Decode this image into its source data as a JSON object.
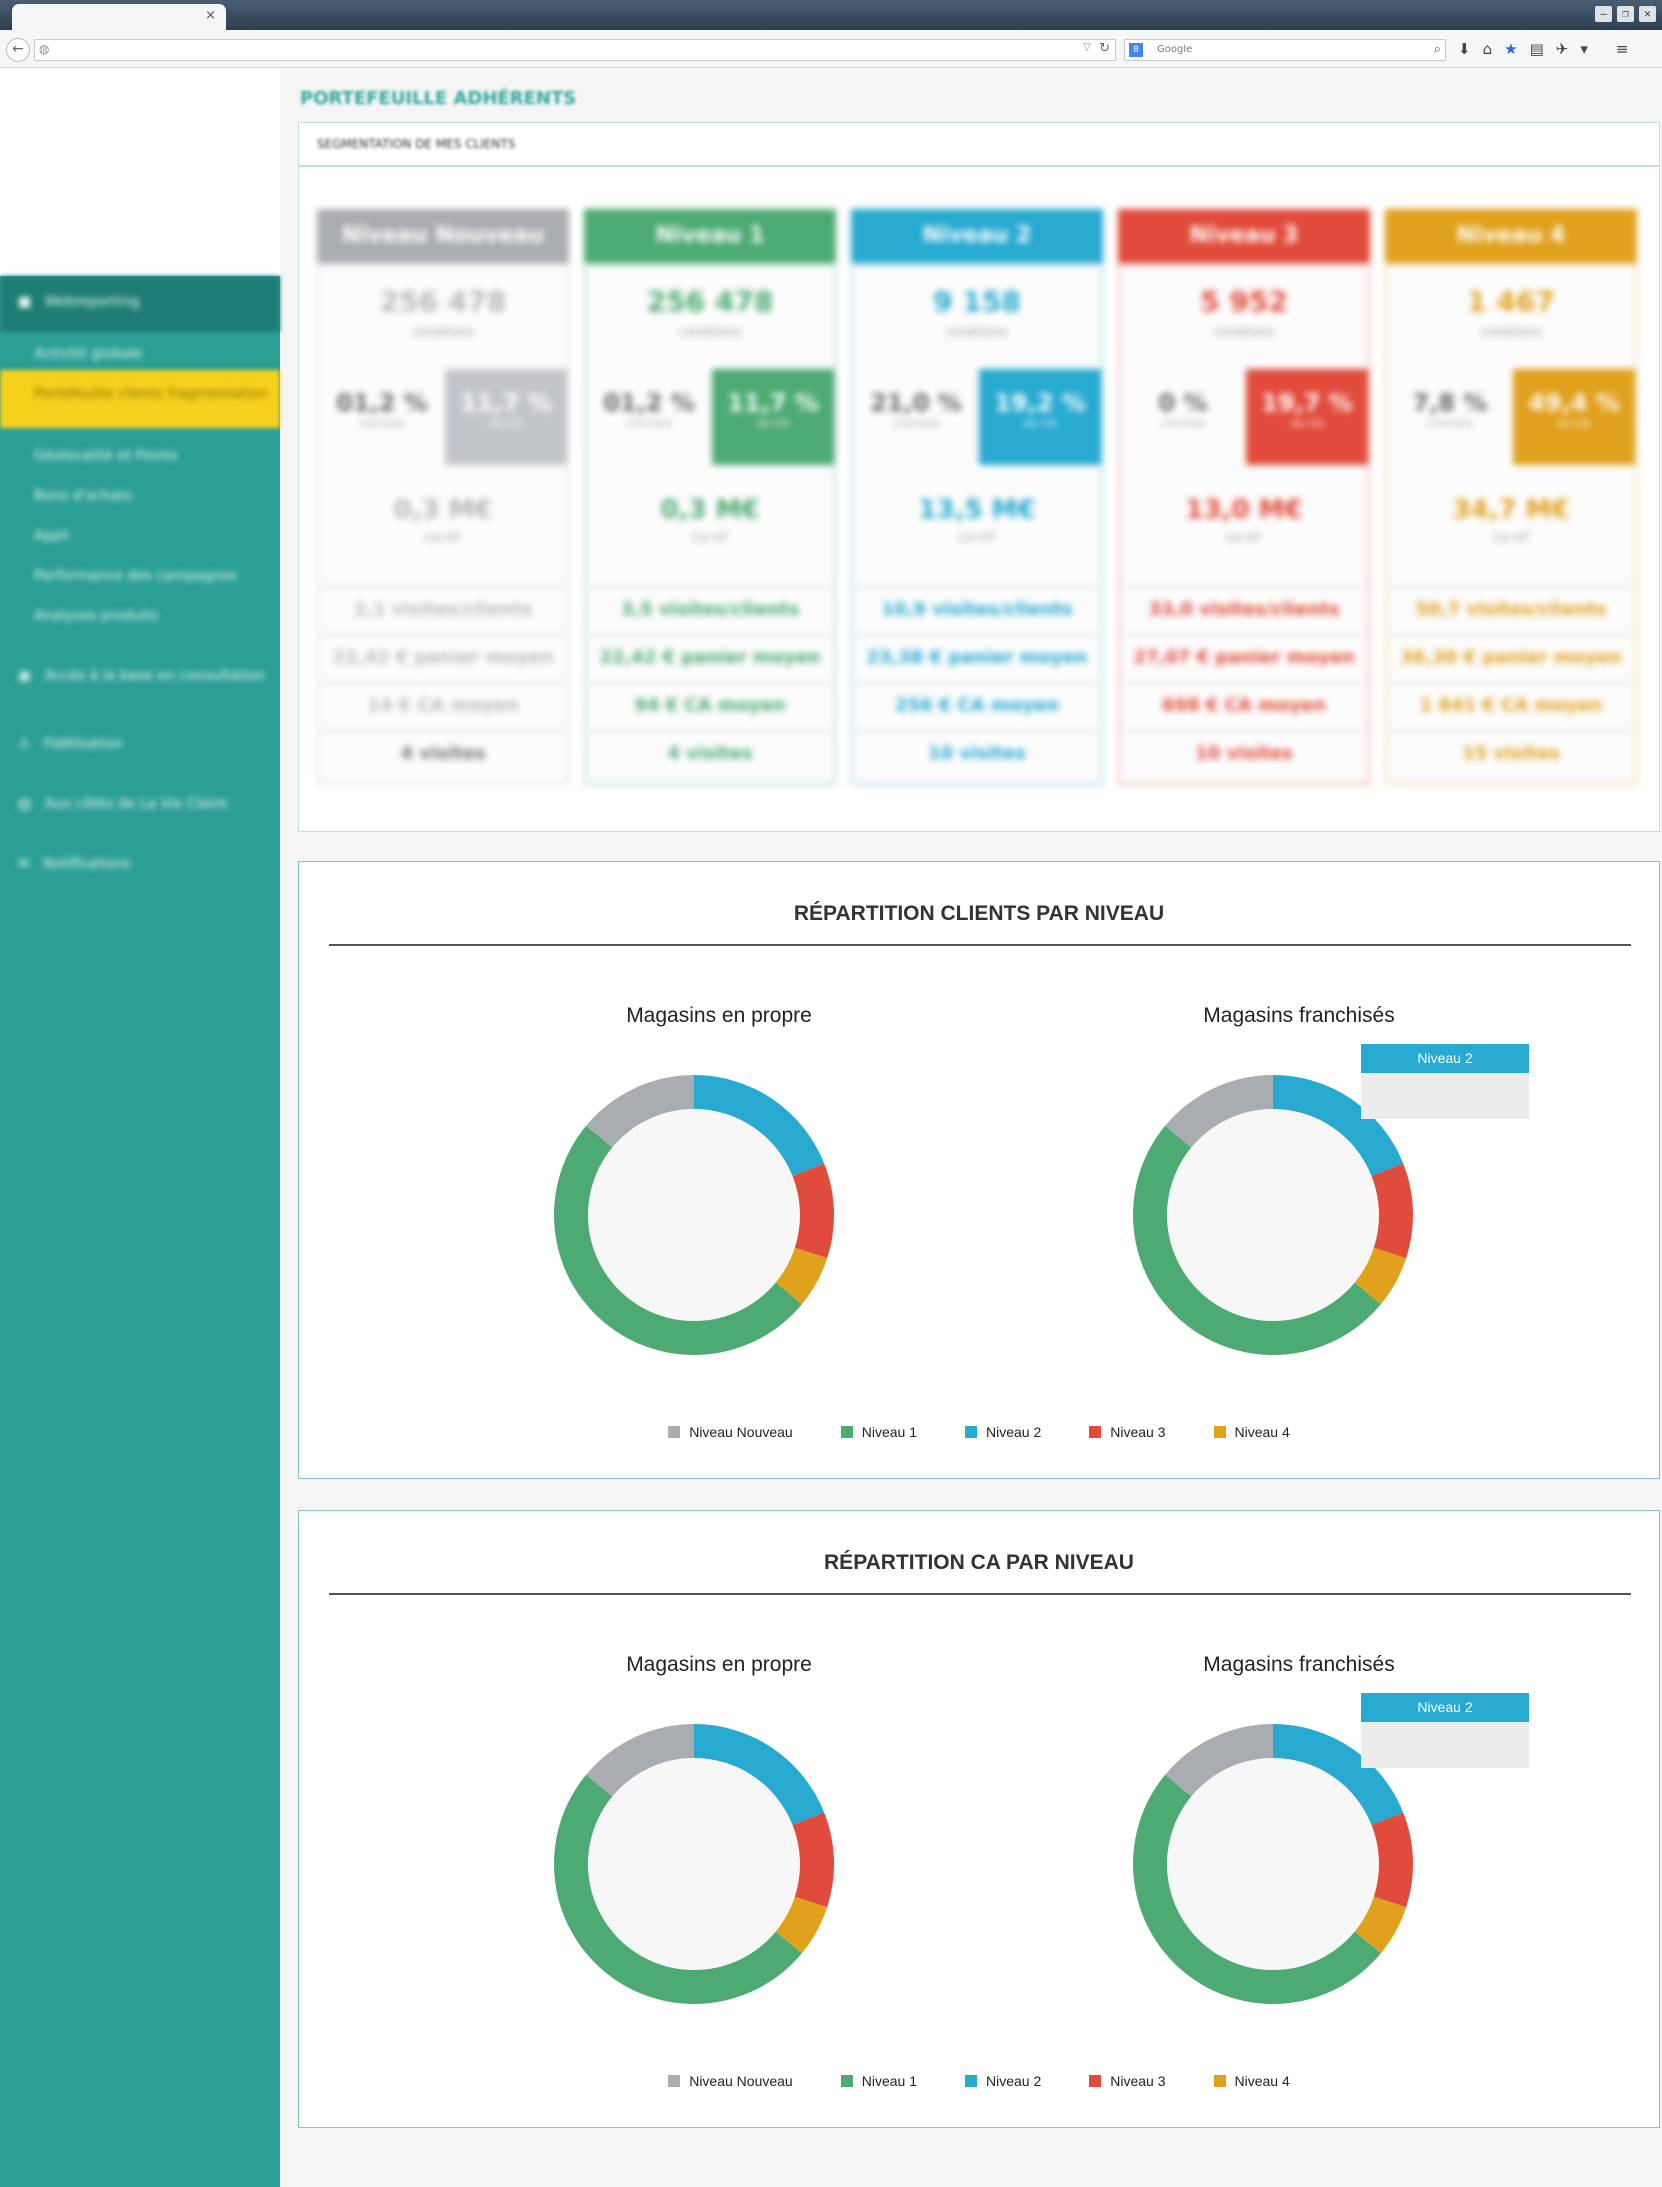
{
  "browser": {
    "tab_close": "×",
    "search_placeholder": "Google",
    "search_engine": "8"
  },
  "sidebar": {
    "items": [
      {
        "label": "Webreporting"
      },
      {
        "label": "Activité globale"
      },
      {
        "label": "Portefeuille clients fragmentation"
      },
      {
        "label": "Géolocalité et Points"
      },
      {
        "label": "Bons d'achats"
      },
      {
        "label": "Appli"
      },
      {
        "label": "Performance des campagnes"
      },
      {
        "label": "Analyses produits"
      },
      {
        "label": "Accès à la base en consultation"
      },
      {
        "label": "Fidélisation"
      },
      {
        "label": "Aux côtés de La Vie Claire"
      },
      {
        "label": "Notifications"
      }
    ]
  },
  "page": {
    "title": "PORTEFEUILLE ADHÉRENTS",
    "segment_title": "SEGMENTATION DE MES CLIENTS"
  },
  "levels": [
    {
      "name": "Niveau Nouveau",
      "color": "#a9adb2",
      "count": "256 478",
      "count_sub": "conditions",
      "pct_left": "01,2 %",
      "pct_left_sub": "clientèle",
      "pct_right": "11,7 %",
      "pct_right_sub": "du CA",
      "ca": "0,3 M€",
      "ca_sub": "CA HT",
      "row1": "2,1 visites/clients",
      "row2": "22,42 € panier moyen",
      "row3": "14 € CA moyen",
      "row4": "4 visites"
    },
    {
      "name": "Niveau 1",
      "color": "#4caa72",
      "count": "256 478",
      "count_sub": "conditions",
      "pct_left": "01,2 %",
      "pct_left_sub": "clientèle",
      "pct_right": "11,7 %",
      "pct_right_sub": "du CA",
      "ca": "0,3 M€",
      "ca_sub": "CA HT",
      "row1": "3,5 visites/clients",
      "row2": "22,42 € panier moyen",
      "row3": "94 € CA moyen",
      "row4": "4 visites"
    },
    {
      "name": "Niveau 2",
      "color": "#27a9d0",
      "count": "9 158",
      "count_sub": "conditions",
      "pct_left": "21,0 %",
      "pct_left_sub": "clientèle",
      "pct_right": "19,2 %",
      "pct_right_sub": "du CA",
      "ca": "13,5 M€",
      "ca_sub": "CA HT",
      "row1": "10,9 visites/clients",
      "row2": "23,38 € panier moyen",
      "row3": "256 € CA moyen",
      "row4": "10 visites"
    },
    {
      "name": "Niveau 3",
      "color": "#e14b3b",
      "count": "5 952",
      "count_sub": "conditions",
      "pct_left": "0 %",
      "pct_left_sub": "clientèle",
      "pct_right": "19,7 %",
      "pct_right_sub": "du CA",
      "ca": "13,0 M€",
      "ca_sub": "CA HT",
      "row1": "33,0 visites/clients",
      "row2": "27,07 € panier moyen",
      "row3": "698 € CA moyen",
      "row4": "10 visites"
    },
    {
      "name": "Niveau 4",
      "color": "#e0a11d",
      "count": "1 467",
      "count_sub": "conditions",
      "pct_left": "7,8 %",
      "pct_left_sub": "clientèle",
      "pct_right": "49,4 %",
      "pct_right_sub": "du CA",
      "ca": "34,7 M€",
      "ca_sub": "CA HT",
      "row1": "50,7 visites/clients",
      "row2": "36,30 € panier moyen",
      "row3": "1 841 € CA moyen",
      "row4": "15 visites"
    }
  ],
  "chart_data": [
    {
      "type": "pie",
      "title": "RÉPARTITION CLIENTS PAR NIVEAU",
      "charts": [
        {
          "subtitle": "Magasins en propre",
          "categories": [
            "Niveau Nouveau",
            "Niveau 1",
            "Niveau 2",
            "Niveau 3",
            "Niveau 4"
          ],
          "values": [
            14,
            50,
            19,
            11,
            6
          ]
        },
        {
          "subtitle": "Magasins franchisés",
          "categories": [
            "Niveau Nouveau",
            "Niveau 1",
            "Niveau 2",
            "Niveau 3",
            "Niveau 4"
          ],
          "values": [
            14,
            50,
            19,
            11,
            6
          ],
          "tooltip": "Niveau 2"
        }
      ],
      "legend": [
        "Niveau Nouveau",
        "Niveau 1",
        "Niveau 2",
        "Niveau 3",
        "Niveau 4"
      ]
    },
    {
      "type": "pie",
      "title": "RÉPARTITION CA PAR NIVEAU",
      "charts": [
        {
          "subtitle": "Magasins en propre",
          "categories": [
            "Niveau Nouveau",
            "Niveau 1",
            "Niveau 2",
            "Niveau 3",
            "Niveau 4"
          ],
          "values": [
            14,
            50,
            19,
            11,
            6
          ]
        },
        {
          "subtitle": "Magasins franchisés",
          "categories": [
            "Niveau Nouveau",
            "Niveau 1",
            "Niveau 2",
            "Niveau 3",
            "Niveau 4"
          ],
          "values": [
            14,
            50,
            19,
            11,
            6
          ],
          "tooltip": "Niveau 2"
        }
      ],
      "legend": [
        "Niveau Nouveau",
        "Niveau 1",
        "Niveau 2",
        "Niveau 3",
        "Niveau 4"
      ]
    }
  ],
  "colors": {
    "Niveau Nouveau": "#a9adb2",
    "Niveau 1": "#4caa72",
    "Niveau 2": "#27a9d0",
    "Niveau 3": "#e14b3b",
    "Niveau 4": "#e0a11d"
  }
}
